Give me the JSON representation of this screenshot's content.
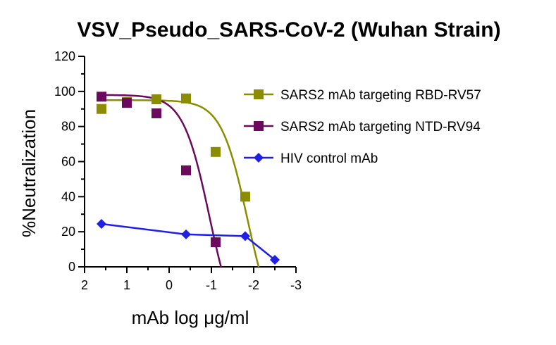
{
  "chart_data": {
    "type": "scatter",
    "title": "VSV_Pseudo_SARS-CoV-2 (Wuhan Strain)",
    "xlabel": "mAb log μg/ml",
    "ylabel": "%Neutralization",
    "xlim": [
      2,
      -3
    ],
    "ylim": [
      0,
      120
    ],
    "x_reversed": true,
    "xticks": [
      2,
      1,
      0,
      -1,
      -2,
      -3
    ],
    "yticks": [
      0,
      20,
      40,
      60,
      80,
      100,
      120
    ],
    "legend_position": "right",
    "grid": false,
    "series": [
      {
        "name": "SARS2 mAb targeting RBD-RV57",
        "color": "#8c8c00",
        "marker": "square",
        "line": "fitted-curve",
        "x": [
          1.6,
          1.0,
          0.3,
          -0.4,
          -1.1,
          -1.8
        ],
        "y": [
          90,
          94,
          95.5,
          96,
          65.5,
          40
        ],
        "fit": {
          "top": 95,
          "bottom": -40,
          "logIC50": -1.85,
          "hill": 1.4
        }
      },
      {
        "name": "SARS2 mAb targeting NTD-RV94",
        "color": "#6b0a5c",
        "marker": "square",
        "line": "fitted-curve",
        "x": [
          1.6,
          1.0,
          0.3,
          -0.4,
          -1.1
        ],
        "y": [
          97,
          93.5,
          87.5,
          55,
          14
        ],
        "fit": {
          "top": 98,
          "bottom": -40,
          "logIC50": -0.95,
          "hill": 1.4
        }
      },
      {
        "name": "HIV control mAb",
        "color": "#1f1fe6",
        "marker": "diamond",
        "line": "connected",
        "x": [
          1.6,
          -0.4,
          -1.8,
          -2.5
        ],
        "y": [
          24.5,
          18.5,
          17.5,
          4
        ],
        "fit": null
      }
    ]
  }
}
